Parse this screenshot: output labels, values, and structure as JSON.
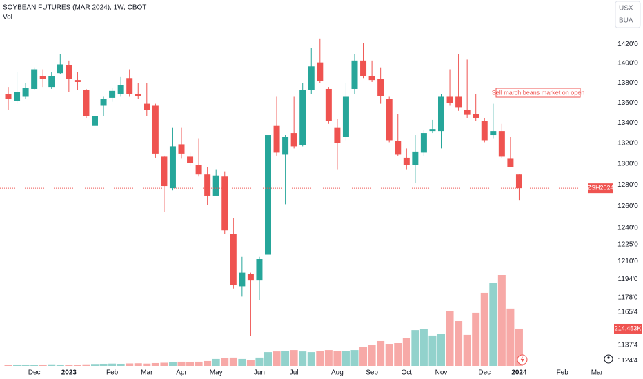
{
  "chart_data": {
    "type": "candlestick",
    "title": "SOYBEAN FUTURES (MAR 2024), 1W, CBOT",
    "subtitle": "Vol",
    "currency": "USX",
    "unit": "BUA",
    "annotation": "Sell march beans market on open",
    "last_price_label": "ZSH2024",
    "volume_label": "214.453K",
    "log": true,
    "up_color": "#26a69a",
    "down_color": "#ef5350",
    "volume_up_color": "#92d2cc",
    "volume_down_color": "#f7a9a7",
    "ylim": [
      1118,
      1467
    ],
    "yticks": [
      {
        "value": 1420,
        "label": "1420'0"
      },
      {
        "value": 1400,
        "label": "1400'0"
      },
      {
        "value": 1380,
        "label": "1380'0"
      },
      {
        "value": 1360,
        "label": "1360'0"
      },
      {
        "value": 1340,
        "label": "1340'0"
      },
      {
        "value": 1320,
        "label": "1320'0"
      },
      {
        "value": 1300,
        "label": "1300'0"
      },
      {
        "value": 1280,
        "label": "1280'0"
      },
      {
        "value": 1260,
        "label": "1260'0"
      },
      {
        "value": 1240,
        "label": "1240'0"
      },
      {
        "value": 1225,
        "label": "1225'0"
      },
      {
        "value": 1210,
        "label": "1210'0"
      },
      {
        "value": 1194,
        "label": "1194'0"
      },
      {
        "value": 1178,
        "label": "1178'0"
      },
      {
        "value": 1165.5,
        "label": "1165'4"
      },
      {
        "value": 1137.5,
        "label": "1137'4"
      },
      {
        "value": 1124.5,
        "label": "1124'4"
      }
    ],
    "categories": [
      null,
      null,
      null,
      "Dec",
      null,
      null,
      null,
      "2023",
      null,
      null,
      null,
      null,
      "Feb",
      null,
      null,
      null,
      "Mar",
      null,
      null,
      null,
      "Apr",
      null,
      null,
      null,
      "May",
      null,
      null,
      null,
      null,
      "Jun",
      null,
      null,
      null,
      "Jul",
      null,
      null,
      null,
      null,
      "Aug",
      null,
      null,
      null,
      "Sep",
      null,
      null,
      null,
      "Oct",
      null,
      null,
      null,
      "Nov",
      null,
      null,
      null,
      null,
      "Dec",
      null,
      null,
      null,
      "2024",
      null,
      null,
      null,
      null,
      "Feb",
      null,
      null,
      null,
      "Mar",
      null
    ],
    "open": [
      1369,
      1362,
      1366,
      1374,
      1387,
      1376,
      1390,
      1398,
      1383,
      1373,
      1337,
      1357,
      1365,
      1369,
      1385,
      1369,
      1359,
      1357,
      1307,
      1277,
      1319,
      1307,
      1299,
      1290,
      1270,
      1288,
      1235,
      1188,
      1199,
      1193,
      1216,
      1337,
      1309,
      1330,
      1318,
      1373,
      1401,
      1374,
      1335,
      1326,
      1374,
      1403,
      1387,
      1384,
      1364,
      1322,
      1306,
      1299,
      1311,
      1332,
      1332,
      1366,
      1366,
      1353,
      1349,
      1342,
      1328,
      1332,
      1305,
      1290,
      null,
      null,
      null,
      null,
      null,
      null,
      null,
      null,
      null,
      null
    ],
    "high": [
      1376,
      1391,
      1380,
      1396,
      1394,
      1391,
      1410,
      1403,
      1391,
      1374,
      1349,
      1366,
      1375,
      1386,
      1394,
      1380,
      1380,
      1359,
      1308,
      1335,
      1335,
      1311,
      1325,
      1297,
      1295,
      1293,
      1249,
      1214,
      1200,
      1214,
      1333,
      1366,
      1328,
      1366,
      1380,
      1416,
      1426,
      1376,
      1344,
      1380,
      1410,
      1421,
      1403,
      1396,
      1366,
      1349,
      1315,
      1328,
      1333,
      1343,
      1369,
      1394,
      1410,
      1404,
      1369,
      1345,
      1359,
      1339,
      1326,
      1290,
      null,
      null,
      null,
      null,
      null,
      null,
      null,
      null,
      null,
      null
    ],
    "low": [
      1353,
      1359,
      1364,
      1373,
      1376,
      1374,
      1389,
      1371,
      1373,
      1345,
      1327,
      1347,
      1361,
      1366,
      1366,
      1364,
      1347,
      1306,
      1255,
      1275,
      1305,
      1298,
      1288,
      1261,
      1270,
      1235,
      1186,
      1179,
      1145,
      1176,
      1214,
      1308,
      1262,
      1315,
      1317,
      1369,
      1380,
      1339,
      1295,
      1323,
      1369,
      1385,
      1381,
      1359,
      1321,
      1308,
      1295,
      1282,
      1308,
      1330,
      1315,
      1357,
      1352,
      1345,
      1342,
      1321,
      1325,
      1306,
      1297,
      1266,
      null,
      null,
      null,
      null,
      null,
      null,
      null,
      null,
      null,
      null
    ],
    "close": [
      1364,
      1371,
      1375,
      1394,
      1384,
      1387,
      1399,
      1384,
      1381,
      1347,
      1347,
      1364,
      1372,
      1378,
      1369,
      1367,
      1353,
      1310,
      1279,
      1317,
      1310,
      1301,
      1290,
      1270,
      1289,
      1238,
      1189,
      1200,
      1193,
      1212,
      1328,
      1311,
      1326,
      1317,
      1373,
      1397,
      1382,
      1342,
      1320,
      1366,
      1403,
      1387,
      1383,
      1367,
      1323,
      1309,
      1299,
      1312,
      1330,
      1334,
      1366,
      1360,
      1355,
      1348,
      1345,
      1323,
      1332,
      1307,
      1297,
      1277,
      null,
      null,
      null,
      null,
      null,
      null,
      null,
      null,
      null,
      null
    ],
    "volume": [
      7,
      8,
      8,
      7,
      8,
      9,
      8,
      8,
      7,
      9,
      11,
      12,
      13,
      12,
      14,
      15,
      13,
      16,
      18,
      22,
      24,
      20,
      24,
      28,
      40,
      44,
      48,
      40,
      32,
      48,
      79,
      83,
      87,
      91,
      83,
      79,
      87,
      91,
      87,
      87,
      91,
      111,
      119,
      143,
      127,
      131,
      159,
      206,
      214,
      175,
      183,
      314,
      258,
      179,
      306,
      421,
      477,
      524,
      330,
      214.453,
      null,
      null,
      null,
      null,
      null,
      null,
      null,
      null,
      null,
      null
    ]
  }
}
